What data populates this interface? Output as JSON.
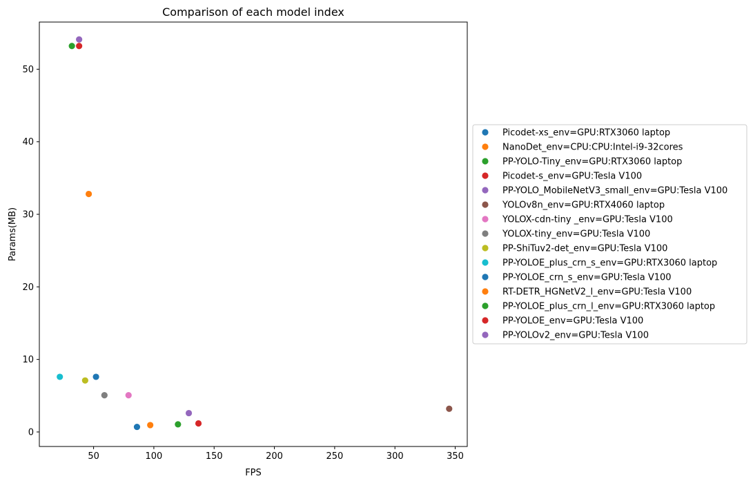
{
  "chart_data": {
    "type": "scatter",
    "title": "Comparison of each model index",
    "xlabel": "FPS",
    "ylabel": "Params(MB)",
    "xlim": [
      5,
      360
    ],
    "ylim": [
      -2,
      56.5
    ],
    "xticks": [
      50,
      100,
      150,
      200,
      250,
      300,
      350
    ],
    "yticks": [
      0,
      10,
      20,
      30,
      40,
      50
    ],
    "grid": false,
    "legend_placement": "right",
    "series": [
      {
        "name": "Picodet-xs_env=GPU:RTX3060 laptop",
        "color": "#1f77b4",
        "points": [
          [
            86,
            0.7
          ]
        ]
      },
      {
        "name": "NanoDet_env=CPU:CPU:Intel-i9-32cores",
        "color": "#ff7f0e",
        "points": [
          [
            97,
            0.95
          ]
        ]
      },
      {
        "name": "PP-YOLO-Tiny_env=GPU:RTX3060 laptop",
        "color": "#2ca02c",
        "points": [
          [
            120,
            1.05
          ]
        ]
      },
      {
        "name": "Picodet-s_env=GPU:Tesla V100",
        "color": "#d62728",
        "points": [
          [
            137,
            1.18
          ]
        ]
      },
      {
        "name": "PP-YOLO_MobileNetV3_small_env=GPU:Tesla V100",
        "color": "#9467bd",
        "points": [
          [
            129,
            2.6
          ]
        ]
      },
      {
        "name": "YOLOv8n_env=GPU:RTX4060 laptop",
        "color": "#8c564b",
        "points": [
          [
            345,
            3.2
          ]
        ]
      },
      {
        "name": "YOLOX-cdn-tiny _env=GPU:Tesla V100",
        "color": "#e377c2",
        "points": [
          [
            79,
            5.06
          ]
        ]
      },
      {
        "name": "YOLOX-tiny_env=GPU:Tesla V100",
        "color": "#7f7f7f",
        "points": [
          [
            59,
            5.06
          ]
        ]
      },
      {
        "name": "PP-ShiTuv2-det_env=GPU:Tesla V100",
        "color": "#bcbd22",
        "points": [
          [
            43,
            7.1
          ]
        ]
      },
      {
        "name": "PP-YOLOE_plus_crn_s_env=GPU:RTX3060 laptop",
        "color": "#17becf",
        "points": [
          [
            22,
            7.6
          ]
        ]
      },
      {
        "name": "PP-YOLOE_crn_s_env=GPU:Tesla V100",
        "color": "#1f77b4",
        "points": [
          [
            52,
            7.6
          ]
        ]
      },
      {
        "name": "RT-DETR_HGNetV2_l_env=GPU:Tesla V100",
        "color": "#ff7f0e",
        "points": [
          [
            46,
            32.8
          ]
        ]
      },
      {
        "name": "PP-YOLOE_plus_crn_l_env=GPU:RTX3060 laptop",
        "color": "#2ca02c",
        "points": [
          [
            32,
            53.2
          ]
        ]
      },
      {
        "name": "PP-YOLOE_env=GPU:Tesla V100",
        "color": "#d62728",
        "points": [
          [
            38,
            53.2
          ]
        ]
      },
      {
        "name": "PP-YOLOv2_env=GPU:Tesla V100",
        "color": "#9467bd",
        "points": [
          [
            38,
            54.1
          ]
        ]
      }
    ]
  }
}
